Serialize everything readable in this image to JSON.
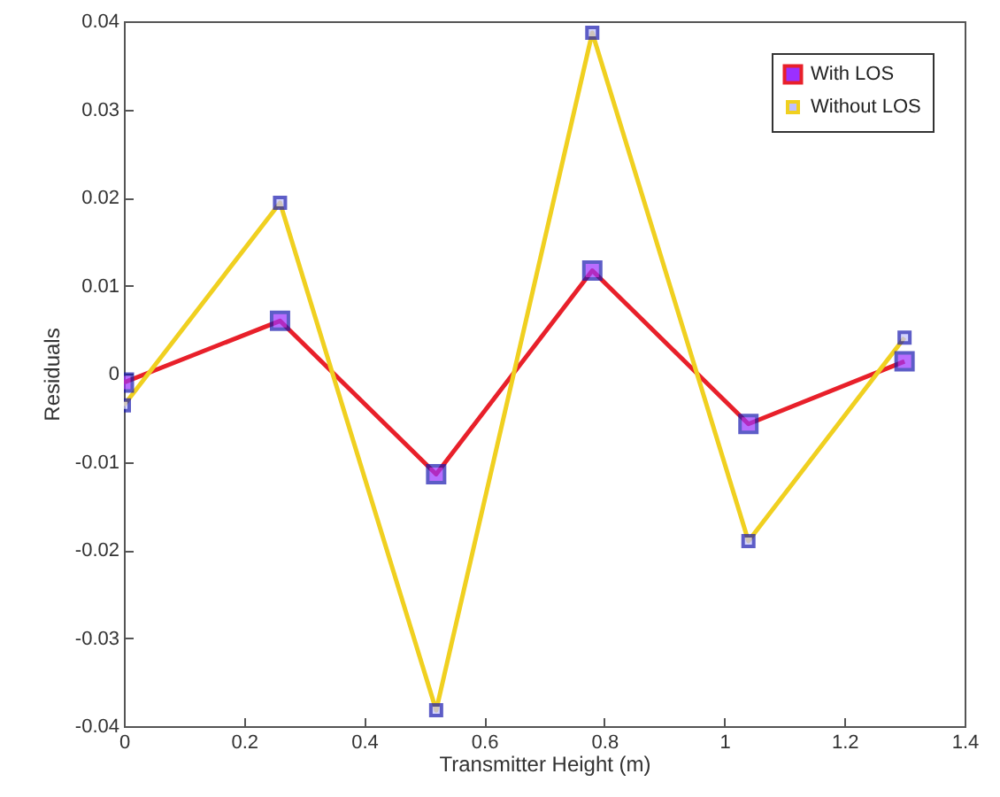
{
  "chart_data": {
    "type": "line",
    "xlabel": "Transmitter Height (m)",
    "ylabel": "Residuals",
    "x": [
      0,
      0.26,
      0.52,
      0.78,
      1.04,
      1.3
    ],
    "series": [
      {
        "name": "With LOS",
        "color": "#e8202a",
        "values": [
          -0.001,
          0.006,
          -0.0114,
          0.0117,
          -0.0057,
          0.0014
        ]
      },
      {
        "name": "Without LOS",
        "color": "#f0d020",
        "values": [
          -0.0036,
          0.0194,
          -0.0382,
          0.0387,
          -0.019,
          0.0041
        ]
      }
    ],
    "xlim": [
      0,
      1.4
    ],
    "xticks": [
      0,
      0.2,
      0.4,
      0.6,
      0.8,
      1,
      1.2,
      1.4
    ],
    "ylim": [
      -0.04,
      0.04
    ],
    "yticks": [
      -0.04,
      -0.03,
      -0.02,
      -0.01,
      0,
      0.01,
      0.02,
      0.03,
      0.04
    ],
    "grid": false,
    "legend": "top right",
    "marker": "square",
    "line_style": "solid"
  }
}
